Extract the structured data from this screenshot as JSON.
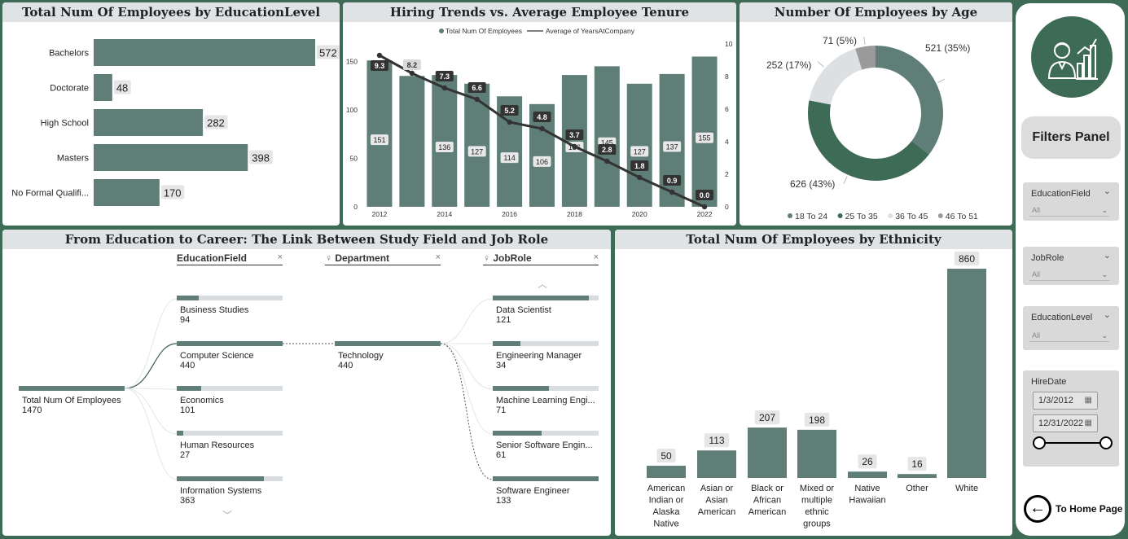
{
  "education_chart": {
    "title": "Total Num Of Employees by EducationLevel",
    "chart_data": {
      "type": "bar",
      "orientation": "horizontal",
      "categories": [
        "Bachelors",
        "Doctorate",
        "High School",
        "Masters",
        "No Formal Qualifi..."
      ],
      "values": [
        572,
        48,
        282,
        398,
        170
      ]
    }
  },
  "hiring_chart": {
    "title": "Hiring Trends vs. Average Employee Tenure",
    "legend": [
      "Total Num Of Employees",
      "Average of YearsAtCompany"
    ],
    "chart_data": {
      "type": "bar",
      "combo": "bar+line",
      "x": [
        2012,
        2013,
        2014,
        2015,
        2016,
        2017,
        2018,
        2019,
        2020,
        2021,
        2022
      ],
      "x_tick_labels": [
        "2012",
        "2014",
        "2016",
        "2018",
        "2020",
        "2022"
      ],
      "series": [
        {
          "name": "Total Num Of Employees",
          "type": "bar",
          "values": [
            151,
            135,
            136,
            127,
            114,
            106,
            136,
            145,
            127,
            137,
            155
          ],
          "labels": [
            "151",
            "",
            "136",
            "127",
            "114",
            "106",
            "136",
            "145",
            "127",
            "137",
            "155"
          ]
        },
        {
          "name": "Average of YearsAtCompany",
          "type": "line",
          "values": [
            9.3,
            8.2,
            7.3,
            6.6,
            5.2,
            4.8,
            3.7,
            2.8,
            1.8,
            0.9,
            0.0
          ]
        }
      ],
      "y_left_ticks": [
        "0",
        "50",
        "100",
        "150"
      ],
      "y_left_lim": [
        0,
        168
      ],
      "y_right_ticks": [
        "0",
        "2",
        "4",
        "6",
        "8",
        "10"
      ],
      "y_right_lim": [
        0,
        10
      ]
    }
  },
  "age_chart": {
    "title": "Number Of Employees by Age",
    "chart_data": {
      "type": "pie",
      "donut": true,
      "categories": [
        "18 To 24",
        "25 To 35",
        "36 To 45",
        "46 To 51"
      ],
      "values": [
        521,
        626,
        252,
        71
      ],
      "labels": [
        "521 (35%)",
        "626 (43%)",
        "252 (17%)",
        "71 (5%)"
      ],
      "legend_position": "bottom"
    }
  },
  "tree": {
    "title": "From Education to Career: The Link Between Study Field and Job Role",
    "headers": [
      "EducationField",
      "Department",
      "JobRole"
    ],
    "root": {
      "label": "Total Num Of Employees",
      "value": "1470"
    },
    "education": [
      {
        "label": "Business Studies",
        "value": "94",
        "share": 0.21
      },
      {
        "label": "Computer Science",
        "value": "440",
        "share": 1.0
      },
      {
        "label": "Economics",
        "value": "101",
        "share": 0.23
      },
      {
        "label": "Human Resources",
        "value": "27",
        "share": 0.06
      },
      {
        "label": "Information Systems",
        "value": "363",
        "share": 0.82
      }
    ],
    "department": {
      "label": "Technology",
      "value": "440",
      "share": 1.0
    },
    "jobs": [
      {
        "label": "Data Scientist",
        "value": "121",
        "share": 0.91
      },
      {
        "label": "Engineering Manager",
        "value": "34",
        "share": 0.26
      },
      {
        "label": "Machine Learning Engi...",
        "value": "71",
        "share": 0.53
      },
      {
        "label": "Senior Software Engin...",
        "value": "61",
        "share": 0.46
      },
      {
        "label": "Software Engineer",
        "value": "133",
        "share": 1.0
      }
    ]
  },
  "ethnicity_chart": {
    "title": "Total Num Of Employees by Ethnicity",
    "chart_data": {
      "type": "bar",
      "categories": [
        "American Indian or Alaska Native",
        "Asian or Asian American",
        "Black or African American",
        "Mixed or multiple ethnic groups",
        "Native Hawaiian",
        "Other",
        "White"
      ],
      "category_lines": [
        [
          "American",
          "Indian or",
          "Alaska",
          "Native"
        ],
        [
          "Asian or",
          "Asian",
          "American"
        ],
        [
          "Black or",
          "African",
          "American"
        ],
        [
          "Mixed or",
          "multiple",
          "ethnic",
          "groups"
        ],
        [
          "Native",
          "Hawaiian"
        ],
        [
          "Other"
        ],
        [
          "White"
        ]
      ],
      "values": [
        50,
        113,
        207,
        198,
        26,
        16,
        860
      ]
    }
  },
  "sidebar": {
    "filters_title": "Filters Panel",
    "slicers": [
      {
        "label": "EducationField",
        "value": "All"
      },
      {
        "label": "JobRole",
        "value": "All"
      },
      {
        "label": "EducationLevel",
        "value": "All"
      }
    ],
    "hire_date": {
      "label": "HireDate",
      "start": "1/3/2012",
      "end": "12/31/2022"
    },
    "home_label": "To Home Page"
  },
  "colors": {
    "bar": "#5f7e77",
    "line": "#333333",
    "age": [
      "#5f7e77",
      "#3e6b56",
      "#dde0e3",
      "#9a9a9a"
    ],
    "background": "#3e6b56"
  }
}
